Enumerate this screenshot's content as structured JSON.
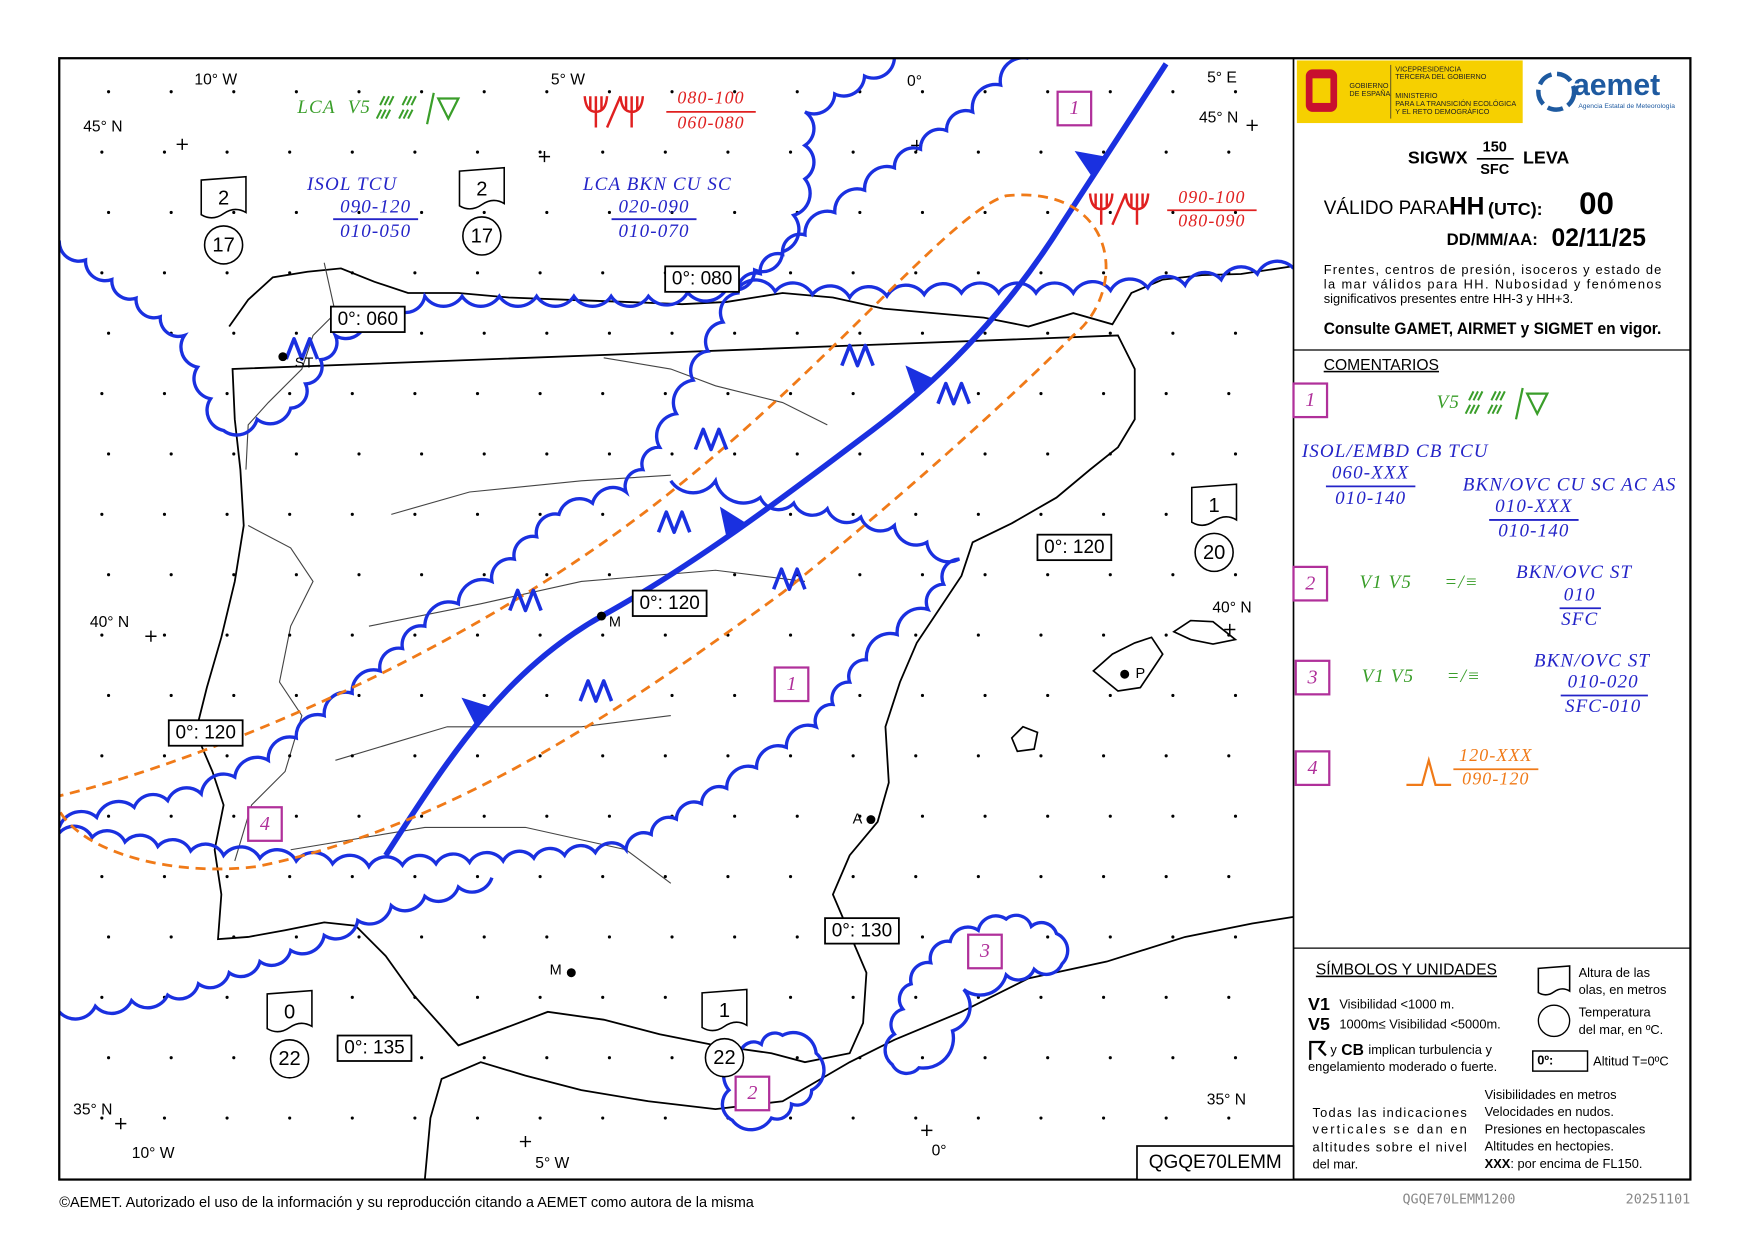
{
  "map": {
    "graticule": [
      "10° W",
      "5° W",
      "0°",
      "5° E",
      "45° N",
      "45° N",
      "40° N",
      "40° N",
      "35° N",
      "35° N",
      "10° W",
      "5° W",
      "0°"
    ],
    "notes": {
      "lca_v5": {
        "area": "LCA",
        "vis": "V5"
      },
      "isol_tcu": {
        "title": "ISOL TCU",
        "top": "090-120",
        "base": "010-050"
      },
      "lca_bkn": {
        "title": "LCA BKN CU SC",
        "top": "020-090",
        "base": "010-070"
      },
      "cb_west": {
        "top": "080-100",
        "base": "060-080"
      },
      "cb_east": {
        "top": "090-100",
        "base": "080-090"
      }
    },
    "freezing_levels": [
      "0°: 060",
      "0°: 080",
      "0°: 120",
      "0°: 120",
      "0°: 120",
      "0°: 130",
      "0°: 135"
    ],
    "sea_states": [
      {
        "wave": "2",
        "temp": "17"
      },
      {
        "wave": "2",
        "temp": "17"
      },
      {
        "wave": "1",
        "temp": "20"
      },
      {
        "wave": "0",
        "temp": "22"
      },
      {
        "wave": "1",
        "temp": "22"
      }
    ],
    "areas": [
      "1",
      "1",
      "4",
      "3",
      "2"
    ],
    "cities": [
      "ST",
      "M",
      "P",
      "A",
      "M"
    ],
    "id": "QGQE70LEMM"
  },
  "panel": {
    "gov": [
      "GOBIERNO",
      "DE ESPAÑA"
    ],
    "gov_dept": [
      "VICEPRESIDENCIA",
      "TERCERA DEL GOBIERNO",
      "MINISTERIO",
      "PARA LA TRANSICIÓN ECOLÓGICA",
      "Y EL RETO DEMOGRÁFICO"
    ],
    "agency": "aemet",
    "agency_full": "Agencia Estatal de Meteorología",
    "product": "SIGWX",
    "upper": "150",
    "lower": "SFC",
    "area": "LEVA",
    "valid_label": "VÁLIDO PARA",
    "hh": "HH",
    "utc": "(UTC):",
    "hour": "00",
    "date_label": "DD/MM/AA:",
    "date": "02/11/25",
    "info": [
      "Frentes, centros de presión, isoceros y estado de",
      "la mar válidos para HH. Nubosidad y fenómenos",
      "significativos presentes entre HH-3 y HH+3."
    ],
    "consult": "Consulte GAMET, AIRMET y SIGMET en vigor.",
    "comments_title": "COMENTARIOS",
    "comments": [
      {
        "id": "1",
        "vis": "V5",
        "cb": {
          "title": "ISOL/EMBD CB TCU",
          "top": "060-XXX",
          "base": "010-140"
        },
        "layer": {
          "title": "BKN/OVC CU SC AC AS",
          "top": "010-XXX",
          "base": "010-140"
        }
      },
      {
        "id": "2",
        "vis": "V1 V5",
        "weather": "=/≡",
        "layer": {
          "title": "BKN/OVC ST",
          "top": "010",
          "base": "SFC"
        }
      },
      {
        "id": "3",
        "vis": "V1 V5",
        "weather": "=/≡",
        "layer": {
          "title": "BKN/OVC ST",
          "top": "010-020",
          "base": "SFC-010"
        }
      },
      {
        "id": "4",
        "top": "120-XXX",
        "base": "090-120"
      }
    ],
    "symbols": {
      "title": "SÍMBOLOS Y UNIDADES",
      "v1": "V1",
      "v1_text": "Visibilidad <1000 m.",
      "v5": "V5",
      "v5_text": "1000m≤ Visibilidad <5000m.",
      "turb_y": "y",
      "turb_cb": "CB",
      "turb_text": "implican turbulencia y",
      "turb_text2": "engelamiento moderado o fuerte.",
      "wave": [
        "Altura de las",
        "olas, en metros"
      ],
      "temp": [
        "Temperatura",
        "del mar, en ºC."
      ],
      "fl_box": "0º:",
      "fl_text": "Altitud T=0ºC",
      "vertical": [
        "Todas las indicaciones",
        "verticales se dan en",
        "altitudes sobre el nivel",
        "del mar."
      ],
      "units": [
        "Visibilidades en metros",
        "Velocidades en nudos.",
        "Presiones en hectopascales",
        "Altitudes en hectopies."
      ],
      "xxx": "XXX",
      "xxx_text": ": por encima de FL150."
    }
  },
  "footer": {
    "copyright": "©AEMET. Autorizado el uso de la información y su reproducción citando a AEMET como autora de la misma",
    "bulletin": "QGQE70LEMM1200",
    "date": "20251101"
  }
}
